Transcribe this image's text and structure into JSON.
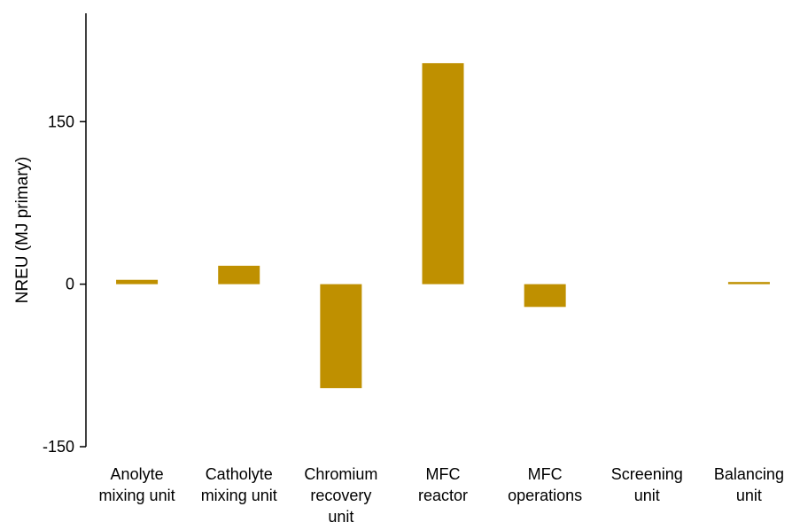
{
  "chart_data": {
    "type": "bar",
    "title": "",
    "xlabel": "",
    "ylabel": "NREU (MJ primary)",
    "categories": [
      [
        "Anolyte",
        "mixing unit"
      ],
      [
        "Catholyte",
        "mixing unit"
      ],
      [
        "Chromium",
        "recovery",
        "unit"
      ],
      [
        "MFC",
        "reactor"
      ],
      [
        "MFC",
        "operations"
      ],
      [
        "Screening",
        "unit"
      ],
      [
        "Balancing",
        "unit"
      ]
    ],
    "values": [
      4,
      17,
      -96,
      204,
      -21,
      0,
      2
    ],
    "ylim": [
      -150,
      250
    ],
    "yticks": [
      -150,
      0,
      150
    ],
    "grid": false,
    "legend": "none",
    "colors": {
      "bar": "#bf9000",
      "axis": "#000000"
    }
  }
}
